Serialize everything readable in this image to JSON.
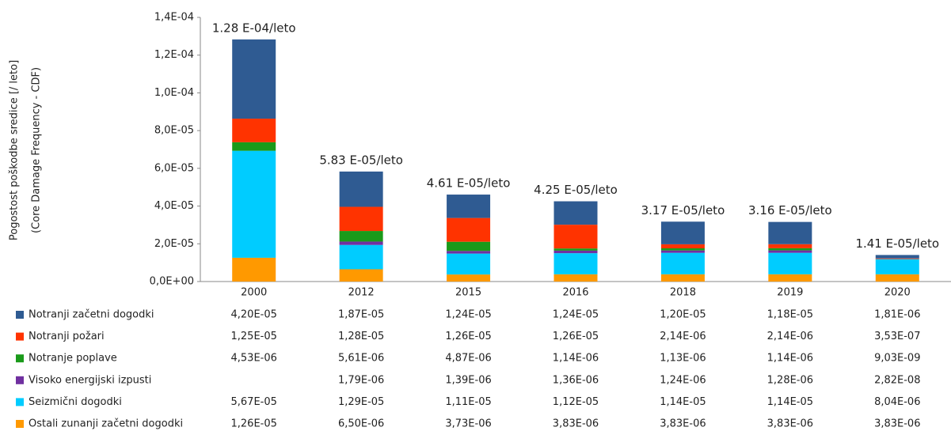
{
  "chart_data": {
    "type": "bar",
    "stacked": true,
    "ylabel": "Pogostost poškodbe sredice [/ leto]",
    "ylabel2": "(Core Damage Frequency - CDF)",
    "categories": [
      "2000",
      "2012",
      "2015",
      "2016",
      "2018",
      "2019",
      "2020"
    ],
    "annotations": [
      "1.28 E-04/leto",
      "5.83 E-05/leto",
      "4.61 E-05/leto",
      "4.25 E-05/leto",
      "3.17 E-05/leto",
      "3.16 E-05/leto",
      "1.41 E-05/leto"
    ],
    "ylim": [
      0,
      0.00014
    ],
    "yticks": [
      {
        "value": 0,
        "label": "0,0E+00"
      },
      {
        "value": 2e-05,
        "label": "2,0E-05"
      },
      {
        "value": 4e-05,
        "label": "4,0E-05"
      },
      {
        "value": 6e-05,
        "label": "6,0E-05"
      },
      {
        "value": 8e-05,
        "label": "8,0E-05"
      },
      {
        "value": 0.0001,
        "label": "1,0E-04"
      },
      {
        "value": 0.00012,
        "label": "1,2E-04"
      },
      {
        "value": 0.00014,
        "label": "1,4E-04"
      }
    ],
    "series": [
      {
        "name": "Notranji začetni dogodki",
        "color": "#2f5b92",
        "values": [
          4.2e-05,
          1.87e-05,
          1.24e-05,
          1.24e-05,
          1.2e-05,
          1.18e-05,
          1.81e-06
        ],
        "value_labels": [
          "4,20E-05",
          "1,87E-05",
          "1,24E-05",
          "1,24E-05",
          "1,20E-05",
          "1,18E-05",
          "1,81E-06"
        ]
      },
      {
        "name": "Notranji požari",
        "color": "#ff3300",
        "values": [
          1.25e-05,
          1.28e-05,
          1.26e-05,
          1.26e-05,
          2.14e-06,
          2.14e-06,
          3.53e-07
        ],
        "value_labels": [
          "1,25E-05",
          "1,28E-05",
          "1,26E-05",
          "1,26E-05",
          "2,14E-06",
          "2,14E-06",
          "3,53E-07"
        ]
      },
      {
        "name": "Notranje poplave",
        "color": "#1a9a1a",
        "values": [
          4.53e-06,
          5.61e-06,
          4.87e-06,
          1.14e-06,
          1.13e-06,
          1.14e-06,
          9.03e-09
        ],
        "value_labels": [
          "4,53E-06",
          "5,61E-06",
          "4,87E-06",
          "1,14E-06",
          "1,13E-06",
          "1,14E-06",
          "9,03E-09"
        ]
      },
      {
        "name": "Visoko energijski izpusti",
        "color": "#7030a0",
        "values": [
          null,
          1.79e-06,
          1.39e-06,
          1.36e-06,
          1.24e-06,
          1.28e-06,
          2.82e-08
        ],
        "value_labels": [
          null,
          "1,79E-06",
          "1,39E-06",
          "1,36E-06",
          "1,24E-06",
          "1,28E-06",
          "2,82E-08"
        ]
      },
      {
        "name": "Seizmični dogodki",
        "color": "#00ccff",
        "values": [
          5.67e-05,
          1.29e-05,
          1.11e-05,
          1.12e-05,
          1.14e-05,
          1.14e-05,
          8.04e-06
        ],
        "value_labels": [
          "5,67E-05",
          "1,29E-05",
          "1,11E-05",
          "1,12E-05",
          "1,14E-05",
          "1,14E-05",
          "8,04E-06"
        ]
      },
      {
        "name": "Ostali zunanji začetni dogodki",
        "color": "#ff9900",
        "values": [
          1.26e-05,
          6.5e-06,
          3.73e-06,
          3.83e-06,
          3.83e-06,
          3.83e-06,
          3.83e-06
        ],
        "value_labels": [
          "1,26E-05",
          "6,50E-06",
          "3,73E-06",
          "3,83E-06",
          "3,83E-06",
          "3,83E-06",
          "3,83E-06"
        ]
      }
    ]
  }
}
